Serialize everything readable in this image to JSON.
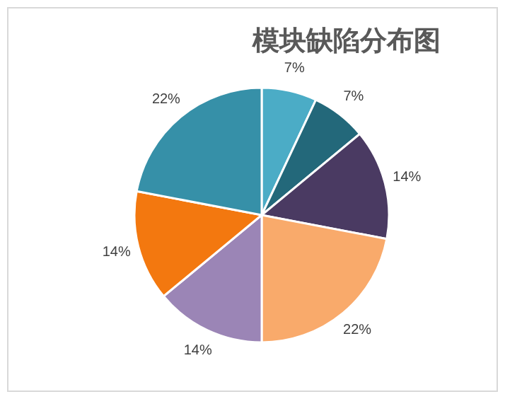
{
  "chart_data": {
    "type": "pie",
    "title": "模块缺陷分布图",
    "categories": [
      null,
      null,
      null,
      null,
      null,
      null,
      null
    ],
    "values": [
      7,
      7,
      14,
      22,
      14,
      14,
      22
    ],
    "colors": [
      "#4bacc6",
      "#23687a",
      "#4a3a62",
      "#f9aa6b",
      "#9b85b6",
      "#f3780f",
      "#3690a8"
    ],
    "value_labels": [
      "7%",
      "7%",
      "14%",
      "22%",
      "14%",
      "14%",
      "22%"
    ]
  }
}
